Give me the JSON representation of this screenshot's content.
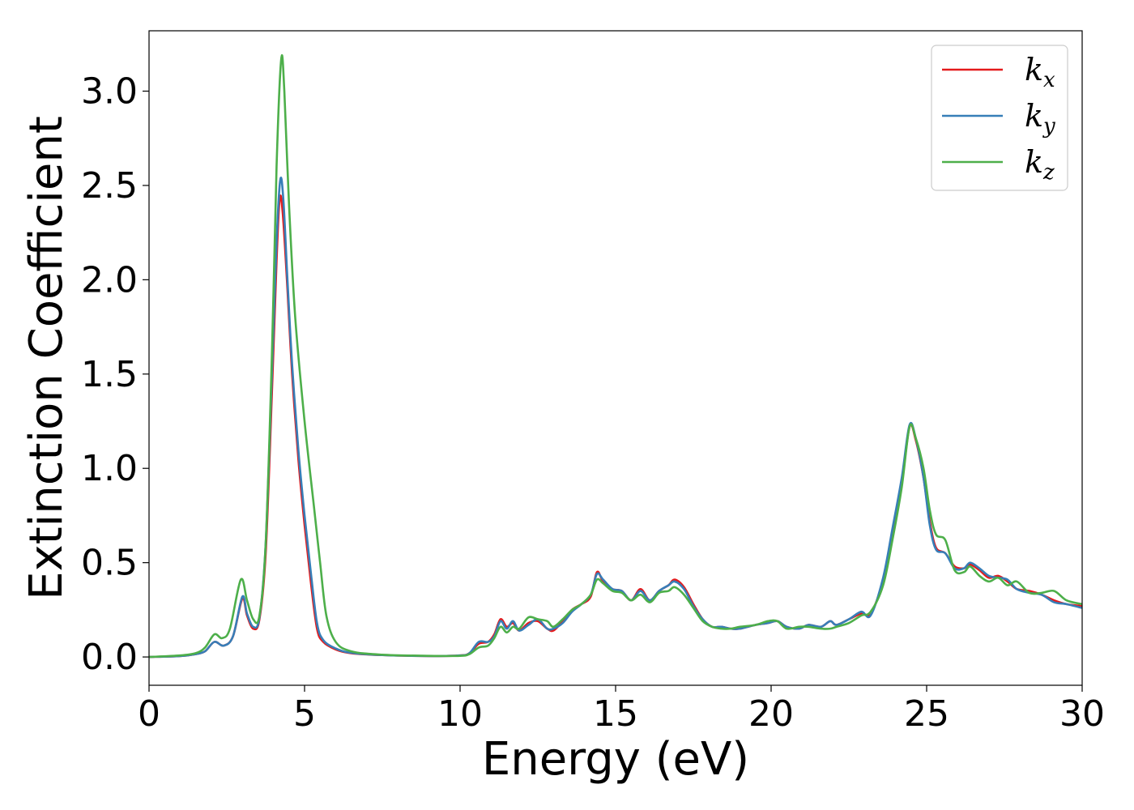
{
  "chart_data": {
    "type": "line",
    "title": "",
    "xlabel": "Energy (eV)",
    "ylabel": "Extinction Coefficient",
    "xlim": [
      0,
      30
    ],
    "ylim": [
      -0.15,
      3.32
    ],
    "xticks": [
      0,
      5,
      10,
      15,
      20,
      25,
      30
    ],
    "xtick_labels": [
      "0",
      "5",
      "10",
      "15",
      "20",
      "25",
      "30"
    ],
    "yticks": [
      0.0,
      0.5,
      1.0,
      1.5,
      2.0,
      2.5,
      3.0
    ],
    "ytick_labels": [
      "0.0",
      "0.5",
      "1.0",
      "1.5",
      "2.0",
      "2.5",
      "3.0"
    ],
    "grid": false,
    "legend_position": "top-right",
    "series": [
      {
        "name": "k_x",
        "label_base": "k",
        "label_sub": "x",
        "color": "#e41a1c",
        "points": [
          [
            0,
            0
          ],
          [
            1,
            0.005
          ],
          [
            1.5,
            0.015
          ],
          [
            1.8,
            0.03
          ],
          [
            2.1,
            0.08
          ],
          [
            2.4,
            0.06
          ],
          [
            2.7,
            0.11
          ],
          [
            3.0,
            0.31
          ],
          [
            3.15,
            0.22
          ],
          [
            3.35,
            0.15
          ],
          [
            3.55,
            0.2
          ],
          [
            3.75,
            0.55
          ],
          [
            3.95,
            1.4
          ],
          [
            4.1,
            2.1
          ],
          [
            4.2,
            2.43
          ],
          [
            4.3,
            2.35
          ],
          [
            4.45,
            1.95
          ],
          [
            4.6,
            1.5
          ],
          [
            4.8,
            1.05
          ],
          [
            5.0,
            0.7
          ],
          [
            5.2,
            0.4
          ],
          [
            5.4,
            0.15
          ],
          [
            5.6,
            0.08
          ],
          [
            6.0,
            0.04
          ],
          [
            6.5,
            0.02
          ],
          [
            7.5,
            0.01
          ],
          [
            9,
            0.005
          ],
          [
            10,
            0.008
          ],
          [
            10.3,
            0.02
          ],
          [
            10.6,
            0.07
          ],
          [
            10.9,
            0.08
          ],
          [
            11.1,
            0.12
          ],
          [
            11.3,
            0.2
          ],
          [
            11.5,
            0.16
          ],
          [
            11.7,
            0.18
          ],
          [
            11.9,
            0.14
          ],
          [
            12.2,
            0.18
          ],
          [
            12.5,
            0.19
          ],
          [
            12.8,
            0.15
          ],
          [
            13.0,
            0.14
          ],
          [
            13.3,
            0.19
          ],
          [
            13.6,
            0.25
          ],
          [
            13.9,
            0.28
          ],
          [
            14.2,
            0.32
          ],
          [
            14.4,
            0.45
          ],
          [
            14.6,
            0.4
          ],
          [
            14.9,
            0.36
          ],
          [
            15.2,
            0.35
          ],
          [
            15.5,
            0.3
          ],
          [
            15.8,
            0.36
          ],
          [
            16.1,
            0.3
          ],
          [
            16.4,
            0.35
          ],
          [
            16.7,
            0.38
          ],
          [
            16.9,
            0.41
          ],
          [
            17.2,
            0.37
          ],
          [
            17.5,
            0.28
          ],
          [
            17.8,
            0.2
          ],
          [
            18.1,
            0.16
          ],
          [
            18.4,
            0.16
          ],
          [
            18.7,
            0.15
          ],
          [
            19.0,
            0.15
          ],
          [
            19.5,
            0.17
          ],
          [
            19.9,
            0.18
          ],
          [
            20.2,
            0.19
          ],
          [
            20.5,
            0.16
          ],
          [
            20.9,
            0.15
          ],
          [
            21.2,
            0.17
          ],
          [
            21.6,
            0.16
          ],
          [
            21.9,
            0.19
          ],
          [
            22.1,
            0.17
          ],
          [
            22.5,
            0.2
          ],
          [
            22.9,
            0.23
          ],
          [
            23.2,
            0.23
          ],
          [
            23.6,
            0.4
          ],
          [
            23.9,
            0.65
          ],
          [
            24.2,
            0.92
          ],
          [
            24.45,
            1.22
          ],
          [
            24.65,
            1.15
          ],
          [
            24.9,
            0.95
          ],
          [
            25.1,
            0.72
          ],
          [
            25.3,
            0.58
          ],
          [
            25.6,
            0.55
          ],
          [
            25.9,
            0.48
          ],
          [
            26.2,
            0.47
          ],
          [
            26.4,
            0.49
          ],
          [
            26.7,
            0.46
          ],
          [
            27.0,
            0.42
          ],
          [
            27.3,
            0.43
          ],
          [
            27.6,
            0.4
          ],
          [
            27.9,
            0.36
          ],
          [
            28.3,
            0.35
          ],
          [
            28.7,
            0.33
          ],
          [
            29.1,
            0.3
          ],
          [
            29.5,
            0.28
          ],
          [
            30,
            0.27
          ]
        ]
      },
      {
        "name": "k_y",
        "label_base": "k",
        "label_sub": "y",
        "color": "#377eb8",
        "points": [
          [
            0,
            0
          ],
          [
            1,
            0.005
          ],
          [
            1.5,
            0.015
          ],
          [
            1.8,
            0.03
          ],
          [
            2.1,
            0.08
          ],
          [
            2.4,
            0.06
          ],
          [
            2.7,
            0.11
          ],
          [
            3.0,
            0.32
          ],
          [
            3.15,
            0.23
          ],
          [
            3.35,
            0.16
          ],
          [
            3.55,
            0.21
          ],
          [
            3.75,
            0.6
          ],
          [
            3.95,
            1.5
          ],
          [
            4.1,
            2.2
          ],
          [
            4.22,
            2.53
          ],
          [
            4.32,
            2.42
          ],
          [
            4.45,
            2.0
          ],
          [
            4.6,
            1.55
          ],
          [
            4.8,
            1.1
          ],
          [
            5.0,
            0.75
          ],
          [
            5.2,
            0.45
          ],
          [
            5.4,
            0.18
          ],
          [
            5.6,
            0.09
          ],
          [
            6.0,
            0.045
          ],
          [
            6.5,
            0.022
          ],
          [
            7.5,
            0.01
          ],
          [
            9,
            0.005
          ],
          [
            10,
            0.008
          ],
          [
            10.3,
            0.02
          ],
          [
            10.6,
            0.08
          ],
          [
            10.9,
            0.08
          ],
          [
            11.1,
            0.11
          ],
          [
            11.3,
            0.19
          ],
          [
            11.5,
            0.15
          ],
          [
            11.7,
            0.19
          ],
          [
            11.9,
            0.14
          ],
          [
            12.2,
            0.17
          ],
          [
            12.5,
            0.2
          ],
          [
            12.8,
            0.15
          ],
          [
            13.0,
            0.15
          ],
          [
            13.3,
            0.18
          ],
          [
            13.6,
            0.24
          ],
          [
            13.9,
            0.28
          ],
          [
            14.2,
            0.33
          ],
          [
            14.4,
            0.44
          ],
          [
            14.6,
            0.41
          ],
          [
            14.9,
            0.36
          ],
          [
            15.2,
            0.35
          ],
          [
            15.5,
            0.3
          ],
          [
            15.8,
            0.35
          ],
          [
            16.1,
            0.3
          ],
          [
            16.4,
            0.35
          ],
          [
            16.7,
            0.38
          ],
          [
            16.9,
            0.4
          ],
          [
            17.2,
            0.36
          ],
          [
            17.5,
            0.27
          ],
          [
            17.8,
            0.2
          ],
          [
            18.1,
            0.16
          ],
          [
            18.4,
            0.16
          ],
          [
            18.7,
            0.15
          ],
          [
            19.0,
            0.15
          ],
          [
            19.5,
            0.17
          ],
          [
            19.9,
            0.18
          ],
          [
            20.2,
            0.19
          ],
          [
            20.5,
            0.16
          ],
          [
            20.9,
            0.15
          ],
          [
            21.2,
            0.17
          ],
          [
            21.6,
            0.16
          ],
          [
            21.9,
            0.19
          ],
          [
            22.1,
            0.17
          ],
          [
            22.5,
            0.2
          ],
          [
            22.9,
            0.24
          ],
          [
            23.2,
            0.22
          ],
          [
            23.6,
            0.42
          ],
          [
            23.9,
            0.68
          ],
          [
            24.2,
            0.95
          ],
          [
            24.45,
            1.23
          ],
          [
            24.65,
            1.16
          ],
          [
            24.9,
            0.95
          ],
          [
            25.1,
            0.7
          ],
          [
            25.3,
            0.57
          ],
          [
            25.6,
            0.55
          ],
          [
            25.9,
            0.47
          ],
          [
            26.2,
            0.47
          ],
          [
            26.4,
            0.5
          ],
          [
            26.7,
            0.47
          ],
          [
            27.0,
            0.43
          ],
          [
            27.3,
            0.42
          ],
          [
            27.6,
            0.41
          ],
          [
            27.9,
            0.36
          ],
          [
            28.3,
            0.34
          ],
          [
            28.7,
            0.33
          ],
          [
            29.1,
            0.29
          ],
          [
            29.5,
            0.28
          ],
          [
            30,
            0.26
          ]
        ]
      },
      {
        "name": "k_z",
        "label_base": "k",
        "label_sub": "z",
        "color": "#4daf4a",
        "points": [
          [
            0,
            0
          ],
          [
            1,
            0.008
          ],
          [
            1.5,
            0.02
          ],
          [
            1.8,
            0.05
          ],
          [
            2.1,
            0.12
          ],
          [
            2.35,
            0.1
          ],
          [
            2.6,
            0.15
          ],
          [
            2.95,
            0.41
          ],
          [
            3.15,
            0.3
          ],
          [
            3.35,
            0.2
          ],
          [
            3.55,
            0.22
          ],
          [
            3.75,
            0.6
          ],
          [
            3.95,
            1.6
          ],
          [
            4.1,
            2.6
          ],
          [
            4.25,
            3.17
          ],
          [
            4.35,
            3.0
          ],
          [
            4.5,
            2.4
          ],
          [
            4.7,
            1.8
          ],
          [
            5.0,
            1.25
          ],
          [
            5.3,
            0.8
          ],
          [
            5.5,
            0.5
          ],
          [
            5.7,
            0.22
          ],
          [
            6.0,
            0.08
          ],
          [
            6.5,
            0.03
          ],
          [
            7.5,
            0.012
          ],
          [
            9,
            0.006
          ],
          [
            10,
            0.006
          ],
          [
            10.3,
            0.015
          ],
          [
            10.6,
            0.05
          ],
          [
            10.9,
            0.06
          ],
          [
            11.1,
            0.1
          ],
          [
            11.3,
            0.16
          ],
          [
            11.5,
            0.13
          ],
          [
            11.7,
            0.16
          ],
          [
            11.9,
            0.15
          ],
          [
            12.2,
            0.21
          ],
          [
            12.5,
            0.2
          ],
          [
            12.8,
            0.19
          ],
          [
            13.0,
            0.16
          ],
          [
            13.3,
            0.2
          ],
          [
            13.6,
            0.25
          ],
          [
            13.9,
            0.28
          ],
          [
            14.2,
            0.33
          ],
          [
            14.4,
            0.41
          ],
          [
            14.6,
            0.39
          ],
          [
            14.9,
            0.35
          ],
          [
            15.2,
            0.34
          ],
          [
            15.5,
            0.3
          ],
          [
            15.8,
            0.33
          ],
          [
            16.1,
            0.29
          ],
          [
            16.4,
            0.34
          ],
          [
            16.7,
            0.35
          ],
          [
            16.9,
            0.37
          ],
          [
            17.2,
            0.33
          ],
          [
            17.5,
            0.26
          ],
          [
            17.8,
            0.19
          ],
          [
            18.1,
            0.16
          ],
          [
            18.4,
            0.15
          ],
          [
            18.7,
            0.15
          ],
          [
            19.0,
            0.16
          ],
          [
            19.5,
            0.17
          ],
          [
            19.9,
            0.19
          ],
          [
            20.2,
            0.19
          ],
          [
            20.5,
            0.15
          ],
          [
            20.9,
            0.16
          ],
          [
            21.2,
            0.16
          ],
          [
            21.6,
            0.15
          ],
          [
            21.9,
            0.15
          ],
          [
            22.1,
            0.16
          ],
          [
            22.5,
            0.18
          ],
          [
            22.9,
            0.22
          ],
          [
            23.2,
            0.24
          ],
          [
            23.6,
            0.38
          ],
          [
            23.9,
            0.62
          ],
          [
            24.2,
            0.9
          ],
          [
            24.45,
            1.22
          ],
          [
            24.65,
            1.16
          ],
          [
            24.9,
            1.0
          ],
          [
            25.1,
            0.78
          ],
          [
            25.3,
            0.65
          ],
          [
            25.6,
            0.62
          ],
          [
            25.9,
            0.46
          ],
          [
            26.2,
            0.45
          ],
          [
            26.4,
            0.48
          ],
          [
            26.7,
            0.43
          ],
          [
            27.0,
            0.4
          ],
          [
            27.3,
            0.42
          ],
          [
            27.6,
            0.38
          ],
          [
            27.9,
            0.4
          ],
          [
            28.3,
            0.34
          ],
          [
            28.7,
            0.34
          ],
          [
            29.1,
            0.35
          ],
          [
            29.5,
            0.3
          ],
          [
            30,
            0.28
          ]
        ]
      }
    ]
  }
}
